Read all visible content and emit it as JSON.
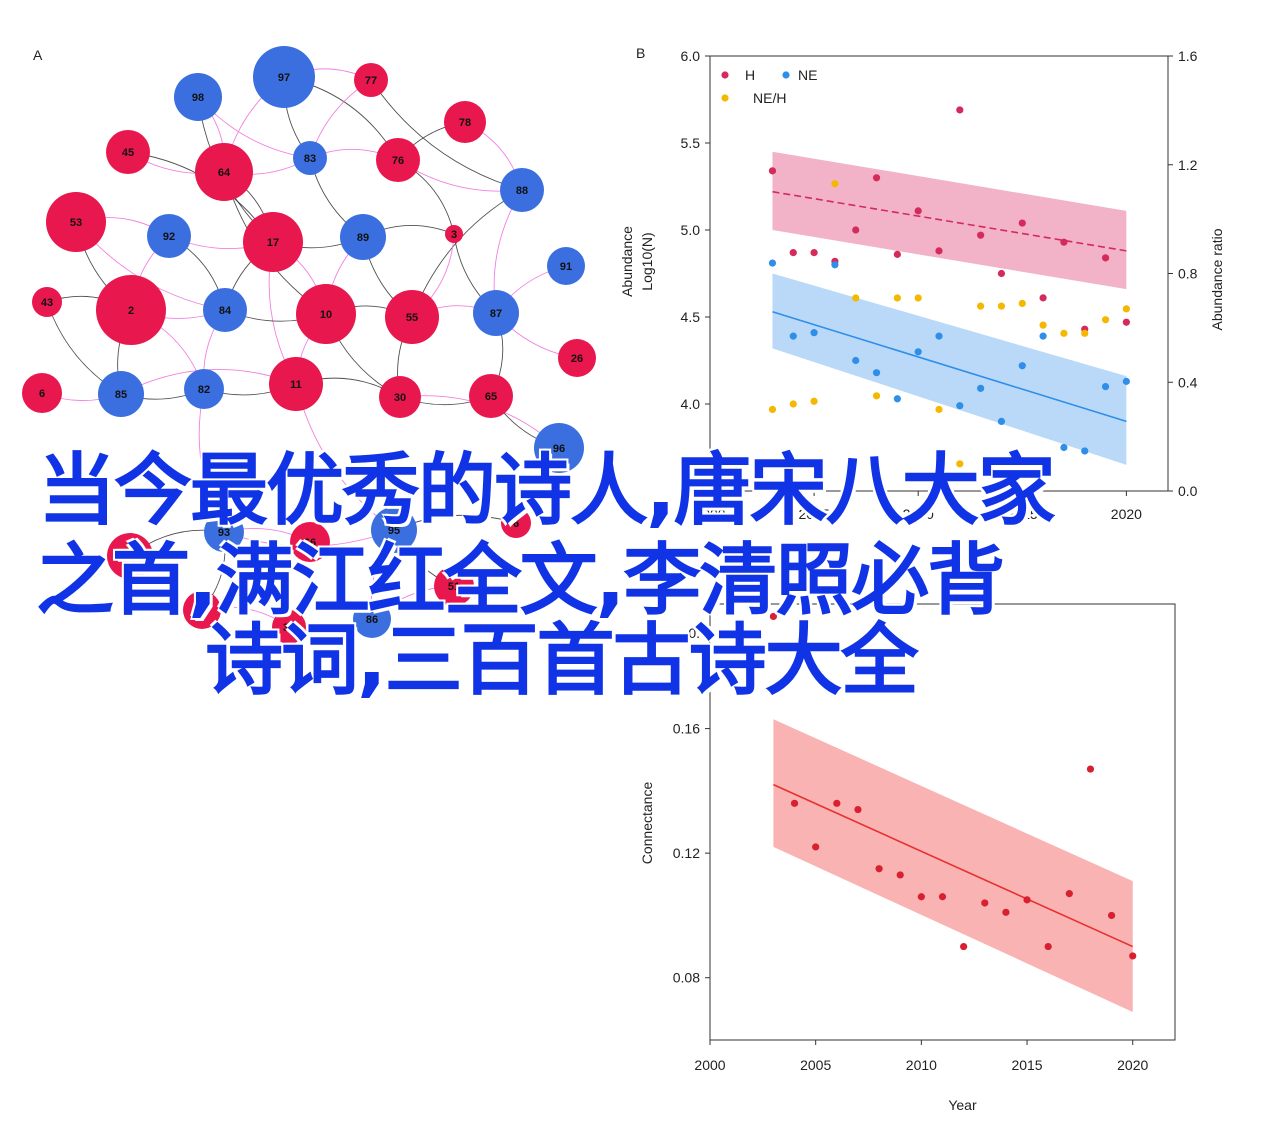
{
  "colors": {
    "red": "#e8174d",
    "blue": "#3b6fe0",
    "edge_pink": "#ee6bdc",
    "edge_dark": "#333333",
    "H": "#d42a5c",
    "NE": "#2f8ee8",
    "NEH": "#f5b800",
    "H_band": "#ee9ab5",
    "NE_band": "#a9cff6",
    "conn_red": "#e83030",
    "conn_band": "#f7a0a0",
    "headline": "#1133e6"
  },
  "headline": {
    "line1": "当今最优秀的诗人,唐宋八大家",
    "line2": "之首,满江红全文,李清照必背",
    "line3": "诗词,三百首古诗大全"
  },
  "chart_data": [
    {
      "panel": "A",
      "type": "network",
      "nodes": [
        {
          "id": "97",
          "group": "blue"
        },
        {
          "id": "77",
          "group": "red"
        },
        {
          "id": "98",
          "group": "blue"
        },
        {
          "id": "78",
          "group": "red"
        },
        {
          "id": "45",
          "group": "red"
        },
        {
          "id": "64",
          "group": "red"
        },
        {
          "id": "83",
          "group": "blue"
        },
        {
          "id": "76",
          "group": "red"
        },
        {
          "id": "88",
          "group": "blue"
        },
        {
          "id": "53",
          "group": "red"
        },
        {
          "id": "92",
          "group": "blue"
        },
        {
          "id": "17",
          "group": "red"
        },
        {
          "id": "89",
          "group": "blue"
        },
        {
          "id": "3",
          "group": "red"
        },
        {
          "id": "91",
          "group": "blue"
        },
        {
          "id": "43",
          "group": "red"
        },
        {
          "id": "2",
          "group": "red"
        },
        {
          "id": "84",
          "group": "blue"
        },
        {
          "id": "10",
          "group": "red"
        },
        {
          "id": "55",
          "group": "red"
        },
        {
          "id": "87",
          "group": "blue"
        },
        {
          "id": "26",
          "group": "red"
        },
        {
          "id": "6",
          "group": "red"
        },
        {
          "id": "85",
          "group": "blue"
        },
        {
          "id": "82",
          "group": "blue"
        },
        {
          "id": "11",
          "group": "red"
        },
        {
          "id": "30",
          "group": "red"
        },
        {
          "id": "65",
          "group": "red"
        },
        {
          "id": "96",
          "group": "blue"
        },
        {
          "id": "93",
          "group": "blue"
        },
        {
          "id": "95",
          "group": "blue"
        },
        {
          "id": "13",
          "group": "red"
        },
        {
          "id": "32",
          "group": "red"
        },
        {
          "id": "86",
          "group": "blue"
        },
        {
          "id": "51",
          "group": "red"
        },
        {
          "id": "6b",
          "label": "6",
          "group": "red"
        },
        {
          "id": "8",
          "group": "red"
        },
        {
          "id": "66",
          "group": "red"
        }
      ],
      "edges": [
        [
          "97",
          "77"
        ],
        [
          "97",
          "83"
        ],
        [
          "97",
          "64"
        ],
        [
          "97",
          "76"
        ],
        [
          "77",
          "83"
        ],
        [
          "77",
          "88"
        ],
        [
          "98",
          "64"
        ],
        [
          "98",
          "17"
        ],
        [
          "45",
          "64"
        ],
        [
          "64",
          "17"
        ],
        [
          "64",
          "83"
        ],
        [
          "64",
          "10"
        ],
        [
          "83",
          "76"
        ],
        [
          "83",
          "89"
        ],
        [
          "76",
          "88"
        ],
        [
          "76",
          "3"
        ],
        [
          "88",
          "87"
        ],
        [
          "88",
          "55"
        ],
        [
          "53",
          "92"
        ],
        [
          "53",
          "2"
        ],
        [
          "92",
          "17"
        ],
        [
          "92",
          "84"
        ],
        [
          "92",
          "2"
        ],
        [
          "17",
          "89"
        ],
        [
          "17",
          "10"
        ],
        [
          "17",
          "84"
        ],
        [
          "17",
          "11"
        ],
        [
          "89",
          "3"
        ],
        [
          "89",
          "10"
        ],
        [
          "89",
          "55"
        ],
        [
          "3",
          "55"
        ],
        [
          "3",
          "87"
        ],
        [
          "91",
          "87"
        ],
        [
          "43",
          "2"
        ],
        [
          "2",
          "84"
        ],
        [
          "2",
          "85"
        ],
        [
          "2",
          "82"
        ],
        [
          "84",
          "10"
        ],
        [
          "84",
          "82"
        ],
        [
          "10",
          "55"
        ],
        [
          "10",
          "11"
        ],
        [
          "10",
          "30"
        ],
        [
          "55",
          "87"
        ],
        [
          "55",
          "30"
        ],
        [
          "87",
          "26"
        ],
        [
          "87",
          "65"
        ],
        [
          "6",
          "85"
        ],
        [
          "85",
          "82"
        ],
        [
          "85",
          "11"
        ],
        [
          "82",
          "11"
        ],
        [
          "82",
          "93"
        ],
        [
          "11",
          "30"
        ],
        [
          "11",
          "95"
        ],
        [
          "30",
          "65"
        ],
        [
          "30",
          "96"
        ],
        [
          "65",
          "96"
        ],
        [
          "93",
          "95"
        ],
        [
          "93",
          "13"
        ],
        [
          "95",
          "86"
        ],
        [
          "95",
          "51"
        ],
        [
          "13",
          "32"
        ],
        [
          "32",
          "86"
        ],
        [
          "51",
          "86"
        ],
        [
          "8",
          "93"
        ],
        [
          "66",
          "93"
        ],
        [
          "6b",
          "95"
        ],
        [
          "78",
          "88"
        ],
        [
          "78",
          "76"
        ],
        [
          "98",
          "83"
        ],
        [
          "45",
          "17"
        ],
        [
          "53",
          "84"
        ],
        [
          "43",
          "85"
        ]
      ]
    },
    {
      "panel": "B",
      "type": "scatter",
      "legend": [
        "H",
        "NE",
        "NE/H"
      ],
      "legend_position": "top-left",
      "ylabel_left": "Abundance Log10(N)",
      "ylabel_right": "Abundance ratio",
      "xlim": [
        2000,
        2022
      ],
      "ylim_left": [
        3.5,
        6.0
      ],
      "ylim_right": [
        0.0,
        1.6
      ],
      "left_ticks": [
        "6.0",
        "5.5",
        "5.0",
        "4.5",
        "4.0"
      ],
      "right_ticks": [
        "1.6",
        "1.2",
        "0.8",
        "0.4",
        "0.0"
      ],
      "series": [
        {
          "name": "H",
          "axis": "left",
          "x": [
            2003,
            2004,
            2005,
            2006,
            2007,
            2008,
            2009,
            2010,
            2011,
            2012,
            2013,
            2014,
            2015,
            2016,
            2017,
            2018,
            2019,
            2020
          ],
          "y": [
            5.34,
            4.87,
            4.87,
            4.82,
            5.0,
            5.3,
            4.86,
            5.11,
            4.88,
            5.69,
            4.97,
            4.75,
            5.04,
            4.61,
            4.93,
            4.43,
            4.84,
            4.47
          ]
        },
        {
          "name": "NE",
          "axis": "left",
          "x": [
            2003,
            2004,
            2005,
            2006,
            2007,
            2008,
            2009,
            2010,
            2011,
            2012,
            2013,
            2014,
            2015,
            2016,
            2017,
            2018,
            2019,
            2020
          ],
          "y": [
            4.81,
            4.39,
            4.41,
            4.8,
            4.25,
            4.18,
            4.03,
            4.3,
            4.39,
            3.99,
            4.09,
            3.9,
            4.22,
            4.39,
            3.75,
            3.73,
            4.1,
            4.13
          ]
        },
        {
          "name": "NE/H",
          "axis": "right",
          "x": [
            2003,
            2004,
            2005,
            2006,
            2007,
            2008,
            2009,
            2010,
            2011,
            2012,
            2013,
            2014,
            2015,
            2016,
            2017,
            2018,
            2019,
            2020
          ],
          "y": [
            0.3,
            0.32,
            0.33,
            1.13,
            0.71,
            0.35,
            0.71,
            0.71,
            0.3,
            0.1,
            0.68,
            0.68,
            0.69,
            0.61,
            0.58,
            0.58,
            0.63,
            0.67
          ]
        }
      ],
      "trend": [
        {
          "name": "H",
          "x": [
            2003,
            2020
          ],
          "y": [
            5.22,
            4.88
          ],
          "band_upper": [
            5.45,
            5.11
          ],
          "band_lower": [
            5.0,
            4.66
          ]
        },
        {
          "name": "NE",
          "x": [
            2003,
            2020
          ],
          "y": [
            4.53,
            3.9
          ],
          "band_upper": [
            4.75,
            4.16
          ],
          "band_lower": [
            4.32,
            3.65
          ]
        }
      ]
    },
    {
      "panel": "C",
      "type": "scatter",
      "xlabel": "Year",
      "ylabel": "Connectance",
      "xlim": [
        2000,
        2022
      ],
      "ylim": [
        0.06,
        0.2
      ],
      "x_ticks": [
        "2000",
        "2005",
        "2010",
        "2015",
        "2020"
      ],
      "y_ticks": [
        "0.16",
        "0.12",
        "0.08"
      ],
      "top_tick": "0.",
      "series": [
        {
          "name": "Connectance",
          "x": [
            2003,
            2004,
            2005,
            2006,
            2007,
            2008,
            2009,
            2010,
            2011,
            2012,
            2013,
            2014,
            2015,
            2016,
            2017,
            2018,
            2019,
            2020
          ],
          "y": [
            0.196,
            0.136,
            0.122,
            0.136,
            0.134,
            0.115,
            0.113,
            0.106,
            0.106,
            0.09,
            0.104,
            0.101,
            0.105,
            0.09,
            0.107,
            0.147,
            0.1,
            0.087
          ]
        }
      ],
      "trend": {
        "x": [
          2003,
          2020
        ],
        "y": [
          0.142,
          0.09
        ],
        "band_upper": [
          0.163,
          0.111
        ],
        "band_lower": [
          0.122,
          0.069
        ]
      }
    }
  ],
  "axis_text": {
    "panelA": "A",
    "panelB": "B",
    "b_xticks_partial": [
      "2000",
      "2005",
      "2010",
      "2015",
      "2020"
    ],
    "c_top_fragment": "0."
  }
}
